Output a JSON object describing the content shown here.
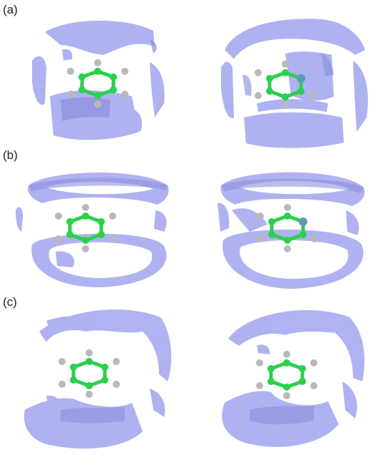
{
  "figure": {
    "panels": [
      {
        "label": "(a)"
      },
      {
        "label": "(b)"
      },
      {
        "label": "(c)"
      }
    ]
  },
  "colors": {
    "isosurface": "#a9acf0",
    "isosurface_dark": "#8c90dd",
    "carbon": "#2bd04c",
    "hydrogen": "#b9b9b9",
    "nitrogen": "#5c9bb5"
  }
}
